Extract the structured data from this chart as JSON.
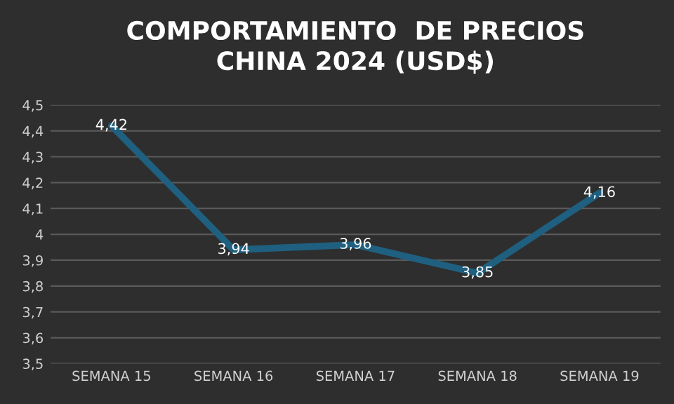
{
  "chart_data": {
    "type": "line",
    "title": "COMPORTAMIENTO  DE PRECIOS\nCHINA 2024 (USD$)",
    "categories": [
      "SEMANA 15",
      "SEMANA 16",
      "SEMANA 17",
      "SEMANA 18",
      "SEMANA 19"
    ],
    "series": [
      {
        "color": "#1f5f7f",
        "values": [
          4.42,
          3.94,
          3.96,
          3.85,
          4.16
        ],
        "value_labels": [
          "4,42",
          "3,94",
          "3,96",
          "3,85",
          "4,16"
        ]
      }
    ],
    "ylim": [
      3.5,
      4.5
    ],
    "yticks": [
      {
        "value": 3.5,
        "label": "3,5"
      },
      {
        "value": 3.6,
        "label": "3,6"
      },
      {
        "value": 3.7,
        "label": "3,7"
      },
      {
        "value": 3.8,
        "label": "3,8"
      },
      {
        "value": 3.9,
        "label": "3,9"
      },
      {
        "value": 4.0,
        "label": "4"
      },
      {
        "value": 4.1,
        "label": "4,1"
      },
      {
        "value": 4.2,
        "label": "4,2"
      },
      {
        "value": 4.3,
        "label": "4,3"
      },
      {
        "value": 4.4,
        "label": "4,4"
      },
      {
        "value": 4.5,
        "label": "4,5"
      }
    ],
    "grid": "y",
    "legend": false,
    "marker": "none",
    "line_style": "solid"
  }
}
